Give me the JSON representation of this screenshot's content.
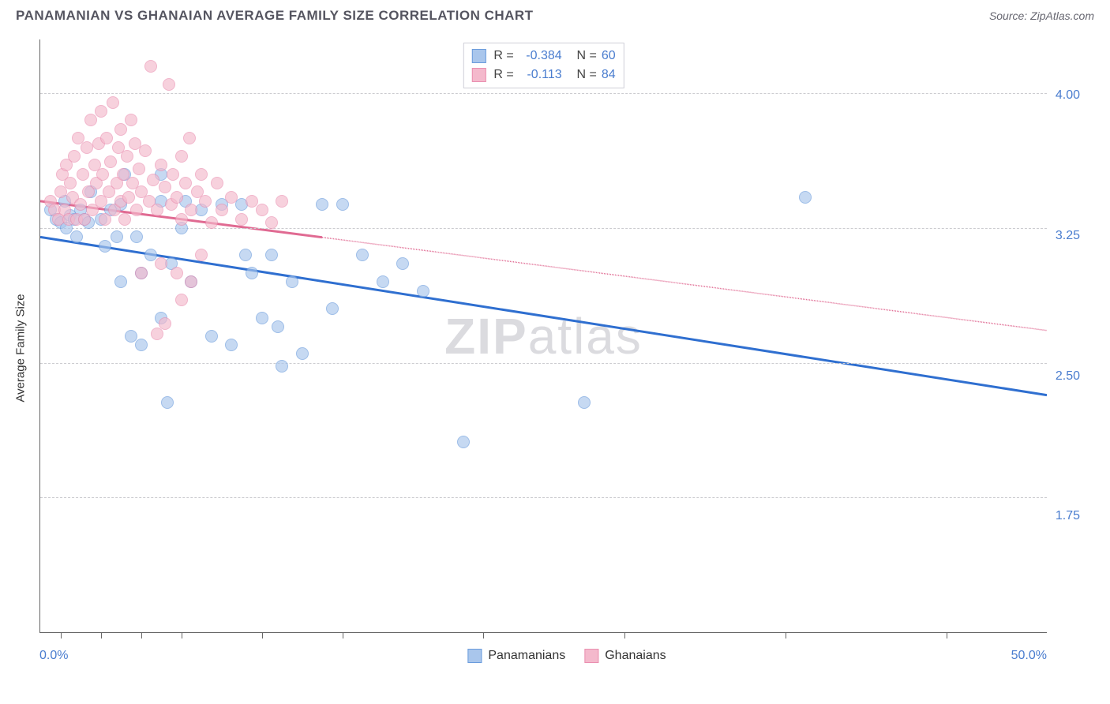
{
  "header": {
    "title": "PANAMANIAN VS GHANAIAN AVERAGE FAMILY SIZE CORRELATION CHART",
    "source": "Source: ZipAtlas.com"
  },
  "chart": {
    "type": "scatter",
    "yaxis_title": "Average Family Size",
    "xlim": [
      0,
      50
    ],
    "ylim": [
      1.0,
      4.3
    ],
    "x_left_label": "0.0%",
    "x_right_label": "50.0%",
    "xtick_positions_pct": [
      2,
      6,
      10,
      14,
      22,
      30,
      44,
      58,
      74,
      90
    ],
    "ygrid": [
      1.75,
      2.5,
      3.25,
      4.0
    ],
    "ytick_labels": [
      "1.75",
      "2.50",
      "3.25",
      "4.00"
    ],
    "background_color": "#ffffff",
    "grid_color": "#ccccd0",
    "axis_color": "#666666",
    "value_color": "#4a7dcf",
    "marker_radius": 8,
    "watermark": {
      "bold": "ZIP",
      "rest": "atlas"
    },
    "series": [
      {
        "name": "Panamanians",
        "fill_color": "#a9c6ec",
        "stroke_color": "#6a9bdc",
        "line_color": "#2f6fd0",
        "R": "-0.384",
        "N": "60",
        "trend": {
          "x1": 0,
          "y1": 3.2,
          "x2": 50,
          "y2": 2.32,
          "solid_until_pct": 100
        },
        "points": [
          [
            0.5,
            3.35
          ],
          [
            0.8,
            3.3
          ],
          [
            1.0,
            3.28
          ],
          [
            1.2,
            3.4
          ],
          [
            1.3,
            3.25
          ],
          [
            1.5,
            3.32
          ],
          [
            1.7,
            3.3
          ],
          [
            1.8,
            3.2
          ],
          [
            2.0,
            3.35
          ],
          [
            2.2,
            3.3
          ],
          [
            2.4,
            3.28
          ],
          [
            2.5,
            3.45
          ],
          [
            3.0,
            3.3
          ],
          [
            3.2,
            3.15
          ],
          [
            3.5,
            3.35
          ],
          [
            3.8,
            3.2
          ],
          [
            4.0,
            3.38
          ],
          [
            4.0,
            2.95
          ],
          [
            4.2,
            3.55
          ],
          [
            4.5,
            2.65
          ],
          [
            4.8,
            3.2
          ],
          [
            5.0,
            3.0
          ],
          [
            5.0,
            2.6
          ],
          [
            5.5,
            3.1
          ],
          [
            6.0,
            3.4
          ],
          [
            6.0,
            2.75
          ],
          [
            6.0,
            3.55
          ],
          [
            6.3,
            2.28
          ],
          [
            6.5,
            3.05
          ],
          [
            7.0,
            3.25
          ],
          [
            7.2,
            3.4
          ],
          [
            7.5,
            2.95
          ],
          [
            8.0,
            3.35
          ],
          [
            8.5,
            2.65
          ],
          [
            9.0,
            3.38
          ],
          [
            9.5,
            2.6
          ],
          [
            10.0,
            3.38
          ],
          [
            10.2,
            3.1
          ],
          [
            10.5,
            3.0
          ],
          [
            11.0,
            2.75
          ],
          [
            11.5,
            3.1
          ],
          [
            11.8,
            2.7
          ],
          [
            12.0,
            2.48
          ],
          [
            12.5,
            2.95
          ],
          [
            13.0,
            2.55
          ],
          [
            14.0,
            3.38
          ],
          [
            14.5,
            2.8
          ],
          [
            15.0,
            3.38
          ],
          [
            16.0,
            3.1
          ],
          [
            17.0,
            2.95
          ],
          [
            18.0,
            3.05
          ],
          [
            19.0,
            2.9
          ],
          [
            21.0,
            2.06
          ],
          [
            27.0,
            2.28
          ],
          [
            38.0,
            3.42
          ]
        ]
      },
      {
        "name": "Ghanaians",
        "fill_color": "#f4b9cc",
        "stroke_color": "#ea8fb0",
        "line_color": "#e06a92",
        "R": "-0.113",
        "N": "84",
        "trend": {
          "x1": 0,
          "y1": 3.4,
          "x2": 50,
          "y2": 2.68,
          "solid_until_pct": 28
        },
        "points": [
          [
            0.5,
            3.4
          ],
          [
            0.7,
            3.35
          ],
          [
            0.9,
            3.3
          ],
          [
            1.0,
            3.45
          ],
          [
            1.1,
            3.55
          ],
          [
            1.2,
            3.35
          ],
          [
            1.3,
            3.6
          ],
          [
            1.4,
            3.3
          ],
          [
            1.5,
            3.5
          ],
          [
            1.6,
            3.42
          ],
          [
            1.7,
            3.65
          ],
          [
            1.8,
            3.3
          ],
          [
            1.9,
            3.75
          ],
          [
            2.0,
            3.38
          ],
          [
            2.1,
            3.55
          ],
          [
            2.2,
            3.3
          ],
          [
            2.3,
            3.7
          ],
          [
            2.4,
            3.45
          ],
          [
            2.5,
            3.85
          ],
          [
            2.6,
            3.35
          ],
          [
            2.7,
            3.6
          ],
          [
            2.8,
            3.5
          ],
          [
            2.9,
            3.72
          ],
          [
            3.0,
            3.4
          ],
          [
            3.0,
            3.9
          ],
          [
            3.1,
            3.55
          ],
          [
            3.2,
            3.3
          ],
          [
            3.3,
            3.75
          ],
          [
            3.4,
            3.45
          ],
          [
            3.5,
            3.62
          ],
          [
            3.6,
            3.95
          ],
          [
            3.7,
            3.35
          ],
          [
            3.8,
            3.5
          ],
          [
            3.9,
            3.7
          ],
          [
            4.0,
            3.4
          ],
          [
            4.0,
            3.8
          ],
          [
            4.1,
            3.55
          ],
          [
            4.2,
            3.3
          ],
          [
            4.3,
            3.65
          ],
          [
            4.4,
            3.42
          ],
          [
            4.5,
            3.85
          ],
          [
            4.6,
            3.5
          ],
          [
            4.7,
            3.72
          ],
          [
            4.8,
            3.35
          ],
          [
            4.9,
            3.58
          ],
          [
            5.0,
            3.45
          ],
          [
            5.0,
            3.0
          ],
          [
            5.2,
            3.68
          ],
          [
            5.4,
            3.4
          ],
          [
            5.5,
            4.15
          ],
          [
            5.6,
            3.52
          ],
          [
            5.8,
            3.35
          ],
          [
            5.8,
            2.66
          ],
          [
            6.0,
            3.6
          ],
          [
            6.0,
            3.05
          ],
          [
            6.2,
            3.48
          ],
          [
            6.2,
            2.72
          ],
          [
            6.4,
            4.05
          ],
          [
            6.5,
            3.38
          ],
          [
            6.6,
            3.55
          ],
          [
            6.8,
            3.42
          ],
          [
            6.8,
            3.0
          ],
          [
            7.0,
            3.65
          ],
          [
            7.0,
            3.3
          ],
          [
            7.0,
            2.85
          ],
          [
            7.2,
            3.5
          ],
          [
            7.4,
            3.75
          ],
          [
            7.5,
            3.35
          ],
          [
            7.5,
            2.95
          ],
          [
            7.8,
            3.45
          ],
          [
            8.0,
            3.55
          ],
          [
            8.0,
            3.1
          ],
          [
            8.2,
            3.4
          ],
          [
            8.5,
            3.28
          ],
          [
            8.8,
            3.5
          ],
          [
            9.0,
            3.35
          ],
          [
            9.5,
            3.42
          ],
          [
            10.0,
            3.3
          ],
          [
            10.5,
            3.4
          ],
          [
            11.0,
            3.35
          ],
          [
            11.5,
            3.28
          ],
          [
            12.0,
            3.4
          ]
        ]
      }
    ]
  }
}
